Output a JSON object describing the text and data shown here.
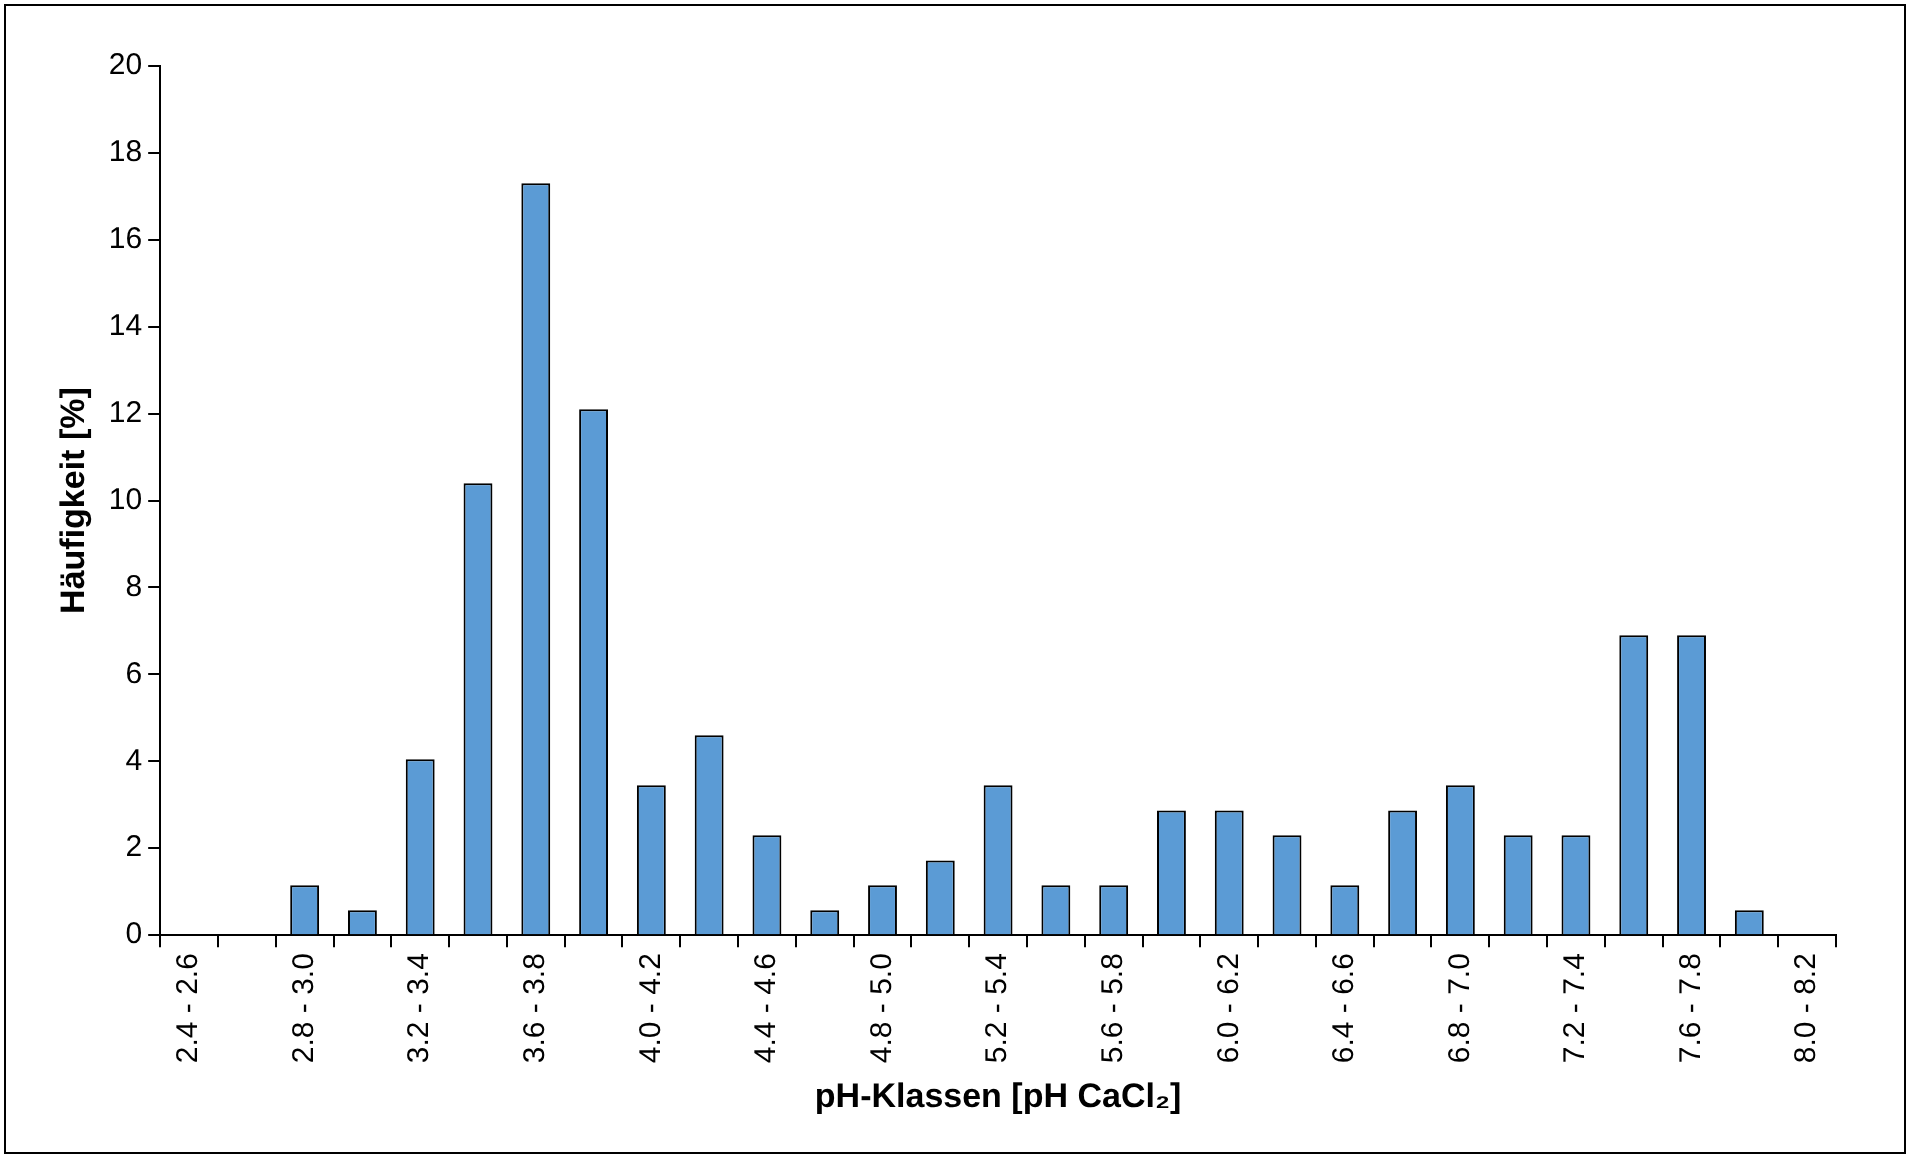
{
  "chart_data": {
    "type": "bar",
    "xlabel": "pH-Klassen [pH CaCl₂]",
    "ylabel": "Häufigkeit [%]",
    "categories": [
      "2.4 - 2.6",
      null,
      "2.8 - 3.0",
      null,
      "3.2 - 3.4",
      null,
      "3.6 - 3.8",
      null,
      "4.0 - 4.2",
      null,
      "4.4 - 4.6",
      null,
      "4.8 - 5.0",
      null,
      "5.2 - 5.4",
      null,
      "5.6 - 5.8",
      null,
      "6.0 - 6.2",
      null,
      "6.4 - 6.6",
      null,
      "6.8 - 7.0",
      null,
      "7.2 - 7.4",
      null,
      "7.6 - 7.8",
      null,
      "8.0 - 8.2"
    ],
    "values": [
      0,
      0,
      1.15,
      0.57,
      4.05,
      10.4,
      17.3,
      12.1,
      3.45,
      4.6,
      2.3,
      0.57,
      1.15,
      1.72,
      3.45,
      1.15,
      1.15,
      2.87,
      2.87,
      2.3,
      1.15,
      2.87,
      3.45,
      2.3,
      2.3,
      6.9,
      6.9,
      0.57,
      0
    ],
    "color": "#5b9bd5",
    "ylim": [
      0,
      20
    ],
    "yticks": [
      0,
      2,
      4,
      6,
      8,
      10,
      12,
      14,
      16,
      18,
      20
    ],
    "grid": false,
    "legend": false
  }
}
